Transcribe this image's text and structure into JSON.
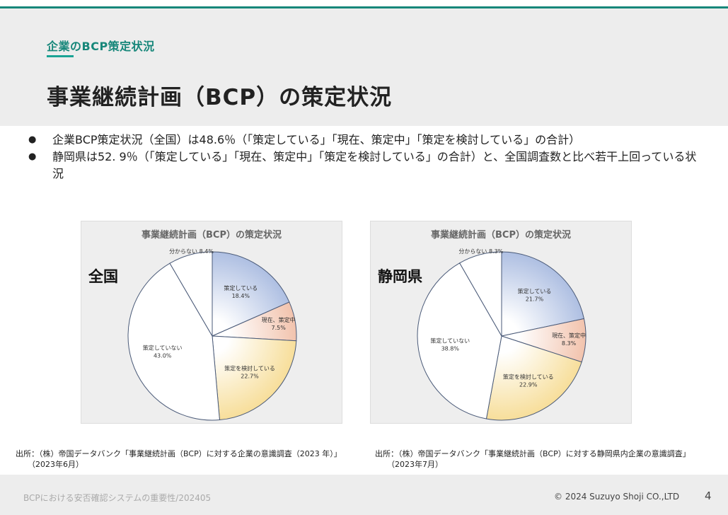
{
  "header": {
    "eyebrow": "企業のBCP策定状況",
    "title": "事業継続計画（BCP）の策定状況"
  },
  "bullets": [
    "企業BCP策定状況（全国）は48.6％（「策定している」「現在、策定中」「策定を検討している」の合計）",
    "静岡県は52. 9％（「策定している」「現在、策定中」「策定を検討している」の合計）と、全国調査数と比べ若干上回っている状況"
  ],
  "chart_data": [
    {
      "type": "pie",
      "title": "事業継続計画（BCP）の策定状況",
      "region": "全国",
      "categories": [
        "策定している",
        "現在、策定中",
        "策定を検討している",
        "策定していない",
        "分からない"
      ],
      "values": [
        18.4,
        7.5,
        22.7,
        43.0,
        8.4
      ],
      "labels": [
        "18.4%",
        "7.5%",
        "22.7%",
        "43.0%",
        "8.4%"
      ],
      "colors": [
        "#aebfe2",
        "#f2c3ad",
        "#f7de9a",
        "#ffffff",
        "#ffffff"
      ]
    },
    {
      "type": "pie",
      "title": "事業継続計画（BCP）の策定状況",
      "region": "静岡県",
      "categories": [
        "策定している",
        "現在、策定中",
        "策定を検討している",
        "策定していない",
        "分からない"
      ],
      "values": [
        21.7,
        8.3,
        22.9,
        38.8,
        8.3
      ],
      "labels": [
        "21.7%",
        "8.3%",
        "22.9%",
        "38.8%",
        "8.3%"
      ],
      "colors": [
        "#aebfe2",
        "#f2c3ad",
        "#f7de9a",
        "#ffffff",
        "#ffffff"
      ]
    }
  ],
  "sources": {
    "left": {
      "line1": "出所：（株）帝国データバンク「事業継続計画（BCP）に対する企業の意識調査（2023 年）」",
      "line2": "（2023年6月）"
    },
    "right": {
      "line1": "出所：（株）帝国データバンク「事業継続計画（BCP）に対する静岡県内企業の意識調査」",
      "line2": "（2023年7月）"
    }
  },
  "footer": {
    "left": "BCPにおける安否確認システムの重要性/202405",
    "copyright": "© 2024 Suzuyo Shoji CO.,LTD",
    "page": "4"
  }
}
